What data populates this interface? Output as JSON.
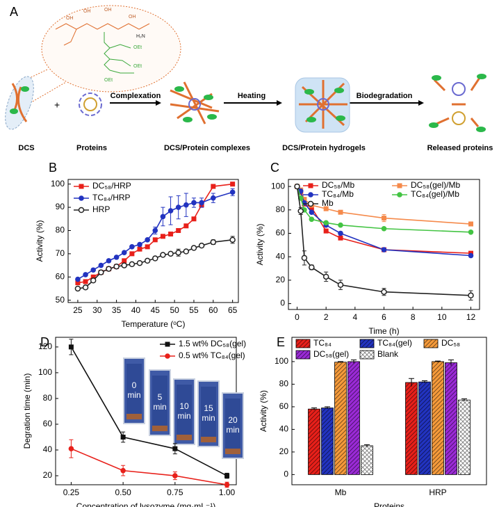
{
  "schematic": {
    "panel": "A",
    "labels": {
      "dcs": "DCS",
      "plus": "+",
      "proteins": "Proteins",
      "complexation": "Complexation",
      "complexes": "DCS/Protein complexes",
      "heating": "Heating",
      "hydrogels": "DCS/Protein hydrogels",
      "biodegradation": "Biodegradation",
      "released": "Released proteins"
    },
    "structure_labels": [
      "OH",
      "OH",
      "OH",
      "OH",
      "H₂N",
      "OEt",
      "OEt",
      "OEt"
    ]
  },
  "chart_data": [
    {
      "type": "line",
      "panel": "B",
      "xlabel": "Temperature (ᵒC)",
      "ylabel": "Activity (%)",
      "x": [
        25,
        27,
        29,
        31,
        33,
        35,
        37,
        39,
        41,
        43,
        45,
        47,
        49,
        51,
        53,
        55,
        57,
        60,
        65
      ],
      "xlim": [
        22.5,
        66.5
      ],
      "xticks": [
        25,
        30,
        35,
        40,
        45,
        50,
        55,
        60,
        65
      ],
      "ylim": [
        49,
        102
      ],
      "yticks": [
        50,
        60,
        70,
        80,
        90,
        100
      ],
      "series": [
        {
          "name": "DC₅₈/HRP",
          "color": "#e8201a",
          "marker": "square",
          "values": [
            57.5,
            58,
            60,
            62,
            63.5,
            64.5,
            67,
            70,
            72,
            73,
            76,
            77.5,
            78.5,
            80,
            82,
            85,
            91,
            99,
            100
          ]
        },
        {
          "name": "TC₈₄/HRP",
          "color": "#2233c0",
          "marker": "circle",
          "values": [
            59,
            61,
            63,
            65,
            67,
            68.5,
            70.5,
            73,
            74,
            76,
            80,
            86,
            88.5,
            90,
            91,
            92,
            92,
            94,
            96.5
          ],
          "errors": [
            null,
            null,
            null,
            null,
            null,
            null,
            null,
            null,
            null,
            null,
            1.5,
            4,
            6,
            5,
            5,
            2,
            2,
            2,
            1.5
          ]
        },
        {
          "name": "HRP",
          "color": "#222222",
          "marker": "open-circle",
          "values": [
            55,
            55.5,
            58.5,
            62,
            63.5,
            64.5,
            65,
            65.5,
            66,
            67,
            68,
            69.5,
            70,
            70.5,
            71,
            72.5,
            73.5,
            75,
            76
          ],
          "errors": [
            null,
            null,
            null,
            null,
            null,
            null,
            null,
            null,
            null,
            null,
            null,
            null,
            null,
            1.5,
            null,
            null,
            null,
            1,
            1.5
          ]
        }
      ]
    },
    {
      "type": "line",
      "panel": "C",
      "xlabel": "Time (h)",
      "ylabel": "Activity (%)",
      "x": [
        0,
        0.25,
        0.5,
        1,
        2,
        3,
        6,
        12
      ],
      "xlim": [
        -0.6,
        12.6
      ],
      "xticks": [
        0,
        2,
        4,
        6,
        8,
        10,
        12
      ],
      "ylim": [
        -5,
        106
      ],
      "yticks": [
        0,
        20,
        40,
        60,
        80,
        100
      ],
      "series": [
        {
          "name": "DC₅₈/Mb",
          "color": "#e8201a",
          "marker": "square",
          "values": [
            100,
            95,
            85,
            82,
            62,
            56,
            46,
            43
          ],
          "errors": [
            null,
            null,
            null,
            null,
            null,
            null,
            null,
            1
          ]
        },
        {
          "name": "DC₅₈(gel)/Mb",
          "color": "#f58a4b",
          "marker": "square",
          "values": [
            100,
            97,
            89,
            84,
            81,
            78,
            73,
            68
          ],
          "errors": [
            null,
            null,
            null,
            null,
            null,
            null,
            3,
            1.5
          ]
        },
        {
          "name": "TC₈₄/Mb",
          "color": "#2233c0",
          "marker": "circle",
          "values": [
            100,
            96,
            86,
            78,
            67,
            60,
            46,
            41
          ]
        },
        {
          "name": "TC₈₄(gel)/Mb",
          "color": "#43c443",
          "marker": "circle",
          "values": [
            100,
            90,
            80,
            72,
            69,
            67,
            64,
            61
          ]
        },
        {
          "name": "Mb",
          "color": "#222222",
          "marker": "open-circle",
          "values": [
            100,
            79,
            39,
            31,
            23,
            16,
            10,
            7
          ],
          "errors": [
            null,
            3,
            6,
            2,
            4,
            4,
            3,
            4
          ]
        }
      ]
    },
    {
      "type": "line",
      "panel": "D",
      "xlabel": "Concentration of lysozyme (mg·mL⁻¹)",
      "ylabel": "Degration time (min)",
      "x": [
        0.25,
        0.5,
        0.75,
        1
      ],
      "xlim": [
        0.175,
        1.045
      ],
      "xticks": [
        {
          "value": 0.25,
          "label": "0.25"
        },
        {
          "value": 0.5,
          "label": "0.50"
        },
        {
          "value": 0.75,
          "label": "0.75"
        },
        {
          "value": 1,
          "label": "1.00"
        }
      ],
      "ylim": [
        13,
        127.5
      ],
      "yticks": [
        20,
        40,
        60,
        80,
        100,
        120
      ],
      "series": [
        {
          "name": "1.5 wt% DC₅₈(gel)",
          "color": "#111111",
          "marker": "square",
          "values": [
            120,
            50,
            41,
            20
          ],
          "errors": [
            6,
            4,
            4,
            2
          ]
        },
        {
          "name": "0.5 wt% TC₈₄(gel)",
          "color": "#e8201a",
          "marker": "circle",
          "values": [
            41,
            24,
            20,
            13
          ],
          "errors": [
            7,
            4,
            3,
            2
          ]
        }
      ],
      "inset_labels": [
        [
          "0",
          "min"
        ],
        [
          "5",
          "min"
        ],
        [
          "10",
          "min"
        ],
        [
          "15",
          "min"
        ],
        [
          "20",
          "min"
        ]
      ]
    },
    {
      "type": "bar",
      "panel": "E",
      "xlabel": "Proteins",
      "ylabel": "Activity (%)",
      "categories": [
        "Mb",
        "HRP"
      ],
      "ylim": [
        -9,
        121.5
      ],
      "yticks": [
        0,
        20,
        40,
        60,
        80,
        100
      ],
      "series": [
        {
          "name": "TC₈₄",
          "color": "#e8201a",
          "pattern": "diagonal",
          "values": [
            58,
            81.5
          ],
          "errors": [
            1,
            3.5
          ]
        },
        {
          "name": "TC₈₄(gel)",
          "color": "#2233c0",
          "pattern": "diagonal",
          "values": [
            59,
            82
          ],
          "errors": [
            1,
            1
          ]
        },
        {
          "name": "DC₅₈",
          "color": "#f59a3a",
          "pattern": "diagonal",
          "values": [
            99.5,
            100
          ],
          "errors": [
            0.5,
            0.5
          ]
        },
        {
          "name": "DC₅₈(gel)",
          "color": "#9a2ad6",
          "pattern": "diagonal",
          "values": [
            100,
            99
          ],
          "errors": [
            1.5,
            2.5
          ]
        },
        {
          "name": "Blank",
          "color": "#ffffff",
          "pattern": "crosshatch",
          "values": [
            25.5,
            66
          ],
          "errors": [
            1,
            1
          ]
        }
      ]
    }
  ]
}
